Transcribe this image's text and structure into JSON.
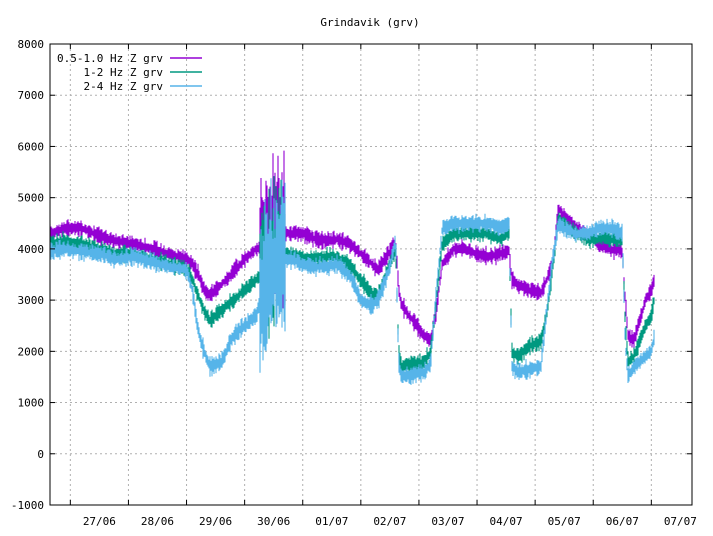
{
  "chart_data": {
    "type": "line",
    "title": "Grindavik (grv)",
    "xlabel": "",
    "ylabel": "",
    "ylim": [
      -1000,
      8000
    ],
    "yticks": [
      -1000,
      0,
      1000,
      2000,
      3000,
      4000,
      5000,
      6000,
      7000,
      8000
    ],
    "xlim": [
      -0.35,
      10.7
    ],
    "xticks": [
      {
        "x": 0.5,
        "label": "27/06"
      },
      {
        "x": 1.5,
        "label": "28/06"
      },
      {
        "x": 2.5,
        "label": "29/06"
      },
      {
        "x": 3.5,
        "label": "30/06"
      },
      {
        "x": 4.5,
        "label": "01/07"
      },
      {
        "x": 5.5,
        "label": "02/07"
      },
      {
        "x": 6.5,
        "label": "03/07"
      },
      {
        "x": 7.5,
        "label": "04/07"
      },
      {
        "x": 8.5,
        "label": "05/07"
      },
      {
        "x": 9.5,
        "label": "06/07"
      },
      {
        "x": 10.5,
        "label": "07/07"
      }
    ],
    "grid": true,
    "legend_position": "top-left",
    "series": [
      {
        "name": "0.5-1.0 Hz Z grv",
        "color": "#9400d3",
        "spread": 150,
        "points": [
          [
            -0.35,
            4300
          ],
          [
            -0.1,
            4400
          ],
          [
            0.2,
            4400
          ],
          [
            0.5,
            4250
          ],
          [
            0.8,
            4150
          ],
          [
            1.1,
            4100
          ],
          [
            1.4,
            4000
          ],
          [
            1.7,
            3900
          ],
          [
            2.0,
            3800
          ],
          [
            2.1,
            3700
          ],
          [
            2.2,
            3500
          ],
          [
            2.3,
            3200
          ],
          [
            2.4,
            3100
          ],
          [
            2.6,
            3300
          ],
          [
            2.8,
            3550
          ],
          [
            3.0,
            3800
          ],
          [
            3.2,
            4000
          ],
          [
            3.4,
            4100
          ],
          [
            3.6,
            4300
          ],
          [
            3.8,
            4300
          ],
          [
            4.0,
            4300
          ],
          [
            4.2,
            4200
          ],
          [
            4.4,
            4150
          ],
          [
            4.6,
            4200
          ],
          [
            4.8,
            4100
          ],
          [
            5.0,
            3900
          ],
          [
            5.2,
            3700
          ],
          [
            5.3,
            3600
          ],
          [
            5.5,
            3950
          ],
          [
            5.6,
            4150
          ],
          [
            5.65,
            3200
          ],
          [
            5.7,
            2900
          ],
          [
            5.9,
            2600
          ],
          [
            6.1,
            2300
          ],
          [
            6.2,
            2200
          ],
          [
            6.3,
            2800
          ],
          [
            6.4,
            3700
          ],
          [
            6.6,
            4000
          ],
          [
            6.8,
            4000
          ],
          [
            7.0,
            3900
          ],
          [
            7.2,
            3850
          ],
          [
            7.4,
            3900
          ],
          [
            7.55,
            3950
          ],
          [
            7.6,
            3400
          ],
          [
            7.7,
            3300
          ],
          [
            7.9,
            3200
          ],
          [
            8.1,
            3150
          ],
          [
            8.2,
            3400
          ],
          [
            8.3,
            3700
          ],
          [
            8.4,
            4800
          ],
          [
            8.5,
            4650
          ],
          [
            8.7,
            4400
          ],
          [
            8.9,
            4300
          ],
          [
            9.1,
            4100
          ],
          [
            9.3,
            4000
          ],
          [
            9.5,
            3950
          ],
          [
            9.55,
            3000
          ],
          [
            9.6,
            2300
          ],
          [
            9.7,
            2200
          ],
          [
            9.8,
            2600
          ],
          [
            9.9,
            3000
          ],
          [
            10.0,
            3200
          ],
          [
            10.05,
            3400
          ]
        ]
      },
      {
        "name": "1-2 Hz Z grv",
        "color": "#009980",
        "spread": 150,
        "points": [
          [
            -0.35,
            4100
          ],
          [
            -0.1,
            4150
          ],
          [
            0.2,
            4100
          ],
          [
            0.5,
            4000
          ],
          [
            0.8,
            3900
          ],
          [
            1.1,
            3900
          ],
          [
            1.4,
            3800
          ],
          [
            1.7,
            3700
          ],
          [
            2.0,
            3600
          ],
          [
            2.1,
            3400
          ],
          [
            2.2,
            3100
          ],
          [
            2.3,
            2800
          ],
          [
            2.4,
            2600
          ],
          [
            2.6,
            2800
          ],
          [
            2.8,
            3000
          ],
          [
            3.0,
            3200
          ],
          [
            3.2,
            3400
          ],
          [
            3.4,
            3700
          ],
          [
            3.6,
            3900
          ],
          [
            3.8,
            3900
          ],
          [
            4.0,
            3800
          ],
          [
            4.2,
            3800
          ],
          [
            4.4,
            3850
          ],
          [
            4.6,
            3850
          ],
          [
            4.8,
            3700
          ],
          [
            5.0,
            3400
          ],
          [
            5.2,
            3100
          ],
          [
            5.3,
            3100
          ],
          [
            5.5,
            3700
          ],
          [
            5.6,
            4000
          ],
          [
            5.65,
            2000
          ],
          [
            5.7,
            1700
          ],
          [
            5.9,
            1750
          ],
          [
            6.1,
            1800
          ],
          [
            6.2,
            2000
          ],
          [
            6.3,
            3000
          ],
          [
            6.4,
            4100
          ],
          [
            6.6,
            4300
          ],
          [
            6.8,
            4300
          ],
          [
            7.0,
            4300
          ],
          [
            7.2,
            4300
          ],
          [
            7.4,
            4200
          ],
          [
            7.55,
            4300
          ],
          [
            7.6,
            2000
          ],
          [
            7.7,
            1900
          ],
          [
            7.9,
            2100
          ],
          [
            8.1,
            2200
          ],
          [
            8.2,
            2700
          ],
          [
            8.3,
            3600
          ],
          [
            8.4,
            4600
          ],
          [
            8.5,
            4500
          ],
          [
            8.7,
            4300
          ],
          [
            8.9,
            4200
          ],
          [
            9.1,
            4200
          ],
          [
            9.3,
            4200
          ],
          [
            9.5,
            4150
          ],
          [
            9.55,
            2600
          ],
          [
            9.6,
            1800
          ],
          [
            9.7,
            1900
          ],
          [
            9.8,
            2200
          ],
          [
            9.9,
            2500
          ],
          [
            10.0,
            2700
          ],
          [
            10.05,
            3000
          ]
        ]
      },
      {
        "name": "2-4 Hz Z grv",
        "color": "#56b4e9",
        "spread": 160,
        "points": [
          [
            -0.35,
            3950
          ],
          [
            -0.1,
            4000
          ],
          [
            0.2,
            3950
          ],
          [
            0.5,
            3900
          ],
          [
            0.8,
            3800
          ],
          [
            1.1,
            3850
          ],
          [
            1.4,
            3750
          ],
          [
            1.7,
            3650
          ],
          [
            2.0,
            3600
          ],
          [
            2.1,
            3200
          ],
          [
            2.2,
            2400
          ],
          [
            2.3,
            2000
          ],
          [
            2.4,
            1700
          ],
          [
            2.6,
            1800
          ],
          [
            2.8,
            2300
          ],
          [
            3.0,
            2500
          ],
          [
            3.2,
            2700
          ],
          [
            3.4,
            3600
          ],
          [
            3.6,
            3800
          ],
          [
            3.8,
            3800
          ],
          [
            4.0,
            3700
          ],
          [
            4.2,
            3650
          ],
          [
            4.4,
            3650
          ],
          [
            4.6,
            3700
          ],
          [
            4.8,
            3500
          ],
          [
            5.0,
            3000
          ],
          [
            5.2,
            2900
          ],
          [
            5.3,
            3000
          ],
          [
            5.5,
            3650
          ],
          [
            5.6,
            4200
          ],
          [
            5.65,
            1800
          ],
          [
            5.7,
            1500
          ],
          [
            5.9,
            1550
          ],
          [
            6.1,
            1600
          ],
          [
            6.2,
            1750
          ],
          [
            6.3,
            3200
          ],
          [
            6.4,
            4400
          ],
          [
            6.6,
            4500
          ],
          [
            6.8,
            4500
          ],
          [
            7.0,
            4500
          ],
          [
            7.2,
            4500
          ],
          [
            7.4,
            4400
          ],
          [
            7.55,
            4500
          ],
          [
            7.6,
            1700
          ],
          [
            7.7,
            1600
          ],
          [
            7.9,
            1650
          ],
          [
            8.1,
            1700
          ],
          [
            8.2,
            2800
          ],
          [
            8.3,
            3800
          ],
          [
            8.4,
            4500
          ],
          [
            8.5,
            4400
          ],
          [
            8.7,
            4300
          ],
          [
            8.9,
            4300
          ],
          [
            9.1,
            4400
          ],
          [
            9.3,
            4400
          ],
          [
            9.5,
            4300
          ],
          [
            9.55,
            2200
          ],
          [
            9.6,
            1500
          ],
          [
            9.7,
            1700
          ],
          [
            9.8,
            1800
          ],
          [
            9.9,
            1900
          ],
          [
            10.0,
            2000
          ],
          [
            10.05,
            2300
          ]
        ]
      }
    ]
  }
}
